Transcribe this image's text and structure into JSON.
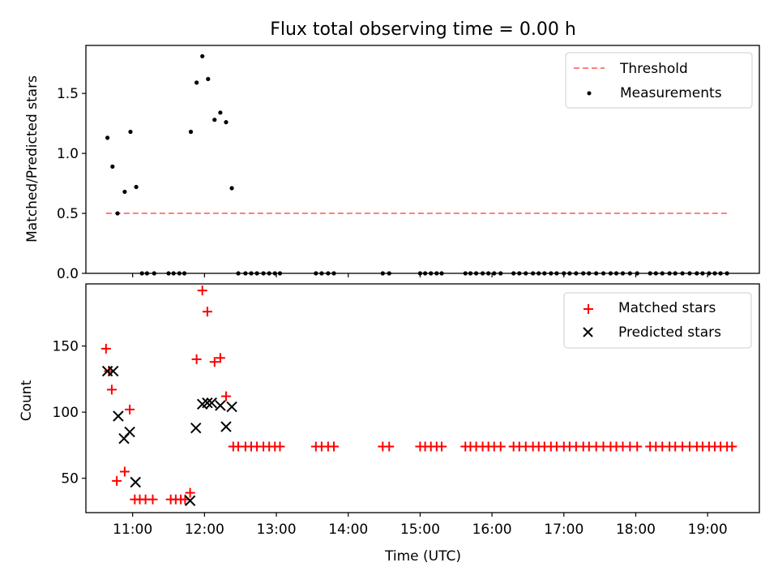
{
  "title": "Flux total observing time = 0.00 h",
  "colors": {
    "threshold": "#ff7f7f",
    "measurement": "#000000",
    "matched": "#ff0000",
    "predicted": "#000000"
  },
  "chart_data": [
    {
      "type": "line+scatter",
      "ylabel": "Matched/Predicted stars",
      "ylim": [
        0,
        1.9
      ],
      "yticks": [
        0.0,
        0.5,
        1.0,
        1.5
      ],
      "ytick_labels": [
        "0.0",
        "0.5",
        "1.0",
        "1.5"
      ],
      "xlim": [
        10.35,
        19.72
      ],
      "legend": {
        "placement": "top-right",
        "entries": [
          "Threshold",
          "Measurements"
        ]
      },
      "threshold": {
        "name": "Threshold",
        "x": [
          10.63,
          19.3
        ],
        "y": [
          0.5,
          0.5
        ]
      },
      "series": [
        {
          "name": "Measurements",
          "points": [
            [
              10.65,
              1.13
            ],
            [
              10.72,
              0.89
            ],
            [
              10.79,
              0.5
            ],
            [
              10.89,
              0.68
            ],
            [
              10.97,
              1.18
            ],
            [
              11.05,
              0.72
            ],
            [
              11.13,
              0
            ],
            [
              11.2,
              0
            ],
            [
              11.3,
              0
            ],
            [
              11.5,
              0
            ],
            [
              11.57,
              0
            ],
            [
              11.65,
              0
            ],
            [
              11.72,
              0
            ],
            [
              11.81,
              1.18
            ],
            [
              11.89,
              1.59
            ],
            [
              11.97,
              1.81
            ],
            [
              12.05,
              1.62
            ],
            [
              12.14,
              1.28
            ],
            [
              12.22,
              1.34
            ],
            [
              12.3,
              1.26
            ],
            [
              12.38,
              0.71
            ],
            [
              12.47,
              0
            ],
            [
              12.57,
              0
            ],
            [
              12.65,
              0
            ],
            [
              12.73,
              0
            ],
            [
              12.82,
              0
            ],
            [
              12.9,
              0
            ],
            [
              12.98,
              0
            ],
            [
              13.05,
              0
            ],
            [
              13.55,
              0
            ],
            [
              13.63,
              0
            ],
            [
              13.72,
              0
            ],
            [
              13.8,
              0
            ],
            [
              14.48,
              0
            ],
            [
              14.57,
              0
            ],
            [
              15.0,
              0
            ],
            [
              15.07,
              0
            ],
            [
              15.15,
              0
            ],
            [
              15.23,
              0
            ],
            [
              15.3,
              0
            ],
            [
              15.63,
              0
            ],
            [
              15.7,
              0
            ],
            [
              15.78,
              0
            ],
            [
              15.87,
              0
            ],
            [
              15.95,
              0
            ],
            [
              16.03,
              0
            ],
            [
              16.12,
              0
            ],
            [
              16.3,
              0
            ],
            [
              16.38,
              0
            ],
            [
              16.47,
              0
            ],
            [
              16.57,
              0
            ],
            [
              16.65,
              0
            ],
            [
              16.73,
              0
            ],
            [
              16.82,
              0
            ],
            [
              16.9,
              0
            ],
            [
              17.0,
              0
            ],
            [
              17.08,
              0
            ],
            [
              17.17,
              0
            ],
            [
              17.27,
              0
            ],
            [
              17.35,
              0
            ],
            [
              17.45,
              0
            ],
            [
              17.55,
              0
            ],
            [
              17.65,
              0
            ],
            [
              17.73,
              0
            ],
            [
              17.82,
              0
            ],
            [
              17.92,
              0
            ],
            [
              18.02,
              0
            ],
            [
              18.2,
              0
            ],
            [
              18.28,
              0
            ],
            [
              18.37,
              0
            ],
            [
              18.47,
              0
            ],
            [
              18.55,
              0
            ],
            [
              18.65,
              0
            ],
            [
              18.75,
              0
            ],
            [
              18.85,
              0
            ],
            [
              18.93,
              0
            ],
            [
              19.02,
              0
            ],
            [
              19.1,
              0
            ],
            [
              19.18,
              0
            ],
            [
              19.27,
              0
            ]
          ]
        }
      ]
    },
    {
      "type": "scatter",
      "xlabel": "Time (UTC)",
      "ylabel": "Count",
      "ylim": [
        24,
        197
      ],
      "yticks": [
        50,
        100,
        150
      ],
      "ytick_labels": [
        "50",
        "100",
        "150"
      ],
      "xlim": [
        10.35,
        19.72
      ],
      "xticks": [
        11,
        12,
        13,
        14,
        15,
        16,
        17,
        18,
        19
      ],
      "xtick_labels": [
        "11:00",
        "12:00",
        "13:00",
        "14:00",
        "15:00",
        "16:00",
        "17:00",
        "18:00",
        "19:00"
      ],
      "legend": {
        "placement": "top-right",
        "entries": [
          "Matched stars",
          "Predicted stars"
        ]
      },
      "series": [
        {
          "name": "Matched stars",
          "marker": "plus",
          "points": [
            [
              10.63,
              148
            ],
            [
              10.67,
              131
            ],
            [
              10.71,
              117
            ],
            [
              10.78,
              48
            ],
            [
              10.89,
              55
            ],
            [
              10.96,
              102
            ],
            [
              11.03,
              34
            ],
            [
              11.1,
              34
            ],
            [
              11.18,
              34
            ],
            [
              11.28,
              34
            ],
            [
              11.53,
              34
            ],
            [
              11.6,
              34
            ],
            [
              11.67,
              34
            ],
            [
              11.73,
              34
            ],
            [
              11.8,
              39
            ],
            [
              11.89,
              140
            ],
            [
              11.97,
              192
            ],
            [
              12.04,
              176
            ],
            [
              12.14,
              138
            ],
            [
              12.22,
              141
            ],
            [
              12.3,
              112
            ],
            [
              12.4,
              74
            ],
            [
              12.47,
              74
            ],
            [
              12.57,
              74
            ],
            [
              12.65,
              74
            ],
            [
              12.73,
              74
            ],
            [
              12.82,
              74
            ],
            [
              12.9,
              74
            ],
            [
              12.98,
              74
            ],
            [
              13.05,
              74
            ],
            [
              13.55,
              74
            ],
            [
              13.63,
              74
            ],
            [
              13.72,
              74
            ],
            [
              13.8,
              74
            ],
            [
              14.48,
              74
            ],
            [
              14.57,
              74
            ],
            [
              15.0,
              74
            ],
            [
              15.07,
              74
            ],
            [
              15.15,
              74
            ],
            [
              15.23,
              74
            ],
            [
              15.3,
              74
            ],
            [
              15.63,
              74
            ],
            [
              15.7,
              74
            ],
            [
              15.78,
              74
            ],
            [
              15.87,
              74
            ],
            [
              15.95,
              74
            ],
            [
              16.03,
              74
            ],
            [
              16.12,
              74
            ],
            [
              16.3,
              74
            ],
            [
              16.38,
              74
            ],
            [
              16.47,
              74
            ],
            [
              16.57,
              74
            ],
            [
              16.65,
              74
            ],
            [
              16.73,
              74
            ],
            [
              16.82,
              74
            ],
            [
              16.9,
              74
            ],
            [
              17.0,
              74
            ],
            [
              17.08,
              74
            ],
            [
              17.17,
              74
            ],
            [
              17.27,
              74
            ],
            [
              17.35,
              74
            ],
            [
              17.45,
              74
            ],
            [
              17.55,
              74
            ],
            [
              17.65,
              74
            ],
            [
              17.73,
              74
            ],
            [
              17.82,
              74
            ],
            [
              17.92,
              74
            ],
            [
              18.02,
              74
            ],
            [
              18.2,
              74
            ],
            [
              18.28,
              74
            ],
            [
              18.37,
              74
            ],
            [
              18.47,
              74
            ],
            [
              18.55,
              74
            ],
            [
              18.65,
              74
            ],
            [
              18.75,
              74
            ],
            [
              18.85,
              74
            ],
            [
              18.93,
              74
            ],
            [
              19.02,
              74
            ],
            [
              19.1,
              74
            ],
            [
              19.18,
              74
            ],
            [
              19.27,
              74
            ],
            [
              19.34,
              74
            ]
          ]
        },
        {
          "name": "Predicted stars",
          "marker": "x",
          "points": [
            [
              10.65,
              131
            ],
            [
              10.73,
              131
            ],
            [
              10.8,
              97
            ],
            [
              10.88,
              80
            ],
            [
              10.96,
              85
            ],
            [
              11.04,
              47
            ],
            [
              11.8,
              33
            ],
            [
              11.88,
              88
            ],
            [
              11.97,
              106
            ],
            [
              12.04,
              107
            ],
            [
              12.1,
              107
            ],
            [
              12.22,
              105
            ],
            [
              12.3,
              89
            ],
            [
              12.38,
              104
            ]
          ]
        }
      ]
    }
  ]
}
